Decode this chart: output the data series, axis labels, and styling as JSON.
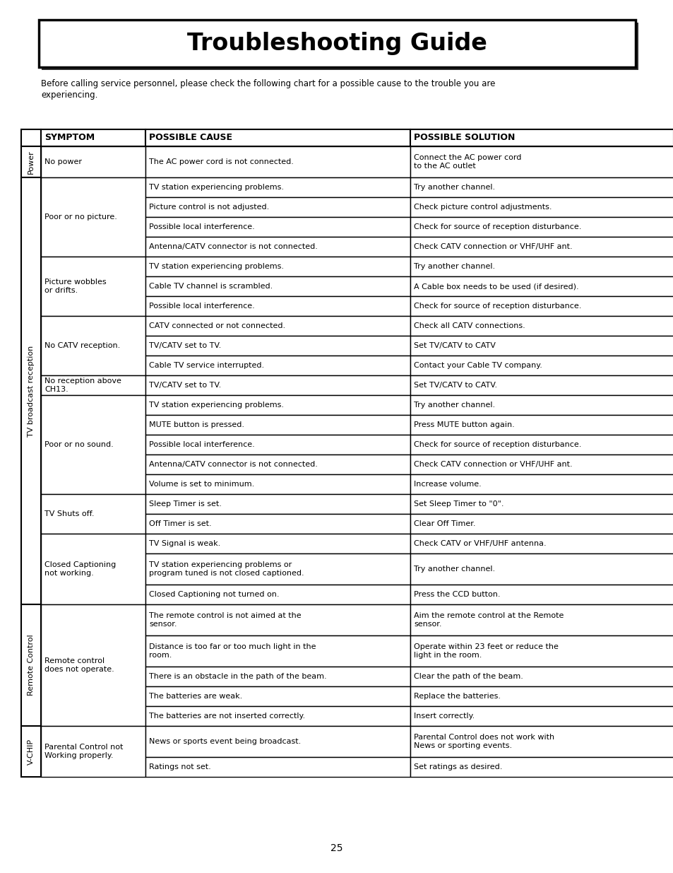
{
  "title": "Troubleshooting Guide",
  "intro_text": "Before calling service personnel, please check the following chart for a possible cause to the trouble you are\nexperiencing.",
  "page_number": "25",
  "sections": [
    {
      "section_label": "Power",
      "rows": [
        {
          "symptom": "No power",
          "cause": "The AC power cord is not connected.",
          "solution": "Connect the AC power cord\nto the AC outlet"
        }
      ]
    },
    {
      "section_label": "TV broadcast reception",
      "rows": [
        {
          "symptom": "Poor or no picture.",
          "cause": "TV station experiencing problems.",
          "solution": "Try another channel."
        },
        {
          "symptom": "",
          "cause": "Picture control is not adjusted.",
          "solution": "Check picture control adjustments."
        },
        {
          "symptom": "",
          "cause": "Possible local interference.",
          "solution": "Check for source of reception disturbance."
        },
        {
          "symptom": "",
          "cause": "Antenna/CATV connector is not connected.",
          "solution": "Check CATV connection or VHF/UHF ant."
        },
        {
          "symptom": "Picture wobbles\nor drifts.",
          "cause": "TV station experiencing problems.",
          "solution": "Try another channel."
        },
        {
          "symptom": "",
          "cause": "Cable TV channel is scrambled.",
          "solution": "A Cable box needs to be used (if desired)."
        },
        {
          "symptom": "",
          "cause": "Possible local interference.",
          "solution": "Check for source of reception disturbance."
        },
        {
          "symptom": "No CATV reception.",
          "cause": "CATV connected or not connected.",
          "solution": "Check all CATV connections."
        },
        {
          "symptom": "",
          "cause": "TV/CATV set to TV.",
          "solution": "Set TV/CATV to CATV"
        },
        {
          "symptom": "",
          "cause": "Cable TV service interrupted.",
          "solution": "Contact your Cable TV company."
        },
        {
          "symptom": "No reception above\nCH13.",
          "cause": "TV/CATV set to TV.",
          "solution": "Set TV/CATV to CATV."
        },
        {
          "symptom": "Poor or no sound.",
          "cause": "TV station experiencing problems.",
          "solution": "Try another channel."
        },
        {
          "symptom": "",
          "cause": "MUTE button is pressed.",
          "solution": "Press MUTE button again."
        },
        {
          "symptom": "",
          "cause": "Possible local interference.",
          "solution": "Check for source of reception disturbance."
        },
        {
          "symptom": "",
          "cause": "Antenna/CATV connector is not connected.",
          "solution": "Check CATV connection or VHF/UHF ant."
        },
        {
          "symptom": "",
          "cause": "Volume is set to minimum.",
          "solution": "Increase volume."
        },
        {
          "symptom": "TV Shuts off.",
          "cause": "Sleep Timer is set.",
          "solution": "Set Sleep Timer to \"0\"."
        },
        {
          "symptom": "",
          "cause": "Off Timer is set.",
          "solution": "Clear Off Timer."
        },
        {
          "symptom": "Closed Captioning\nnot working.",
          "cause": "TV Signal is weak.",
          "solution": "Check CATV or VHF/UHF antenna."
        },
        {
          "symptom": "",
          "cause": "TV station experiencing problems or\nprogram tuned is not closed captioned.",
          "solution": "Try another channel."
        },
        {
          "symptom": "",
          "cause": "Closed Captioning not turned on.",
          "solution": "Press the CCD button."
        }
      ]
    },
    {
      "section_label": "Remote Control",
      "rows": [
        {
          "symptom": "Remote control\ndoes not operate.",
          "cause": "The remote control is not aimed at the\nsensor.",
          "solution": "Aim the remote control at the Remote\nsensor."
        },
        {
          "symptom": "",
          "cause": "Distance is too far or too much light in the\nroom.",
          "solution": "Operate within 23 feet or reduce the\nlight in the room."
        },
        {
          "symptom": "",
          "cause": "There is an obstacle in the path of the beam.",
          "solution": "Clear the path of the beam."
        },
        {
          "symptom": "",
          "cause": "The batteries are weak.",
          "solution": "Replace the batteries."
        },
        {
          "symptom": "",
          "cause": "The batteries are not inserted correctly.",
          "solution": "Insert correctly."
        }
      ]
    },
    {
      "section_label": "V-CHIP",
      "rows": [
        {
          "symptom": "Parental Control not\nWorking properly.",
          "cause": "News or sports event being broadcast.",
          "solution": "Parental Control does not work with\nNews or sporting events."
        },
        {
          "symptom": "",
          "cause": "Ratings not set.",
          "solution": "Set ratings as desired."
        }
      ]
    }
  ],
  "background_color": "#ffffff",
  "font_size_title": 24,
  "font_size_header": 9,
  "font_size_body": 8,
  "font_size_intro": 8.5,
  "font_size_section": 8,
  "font_size_page": 10
}
